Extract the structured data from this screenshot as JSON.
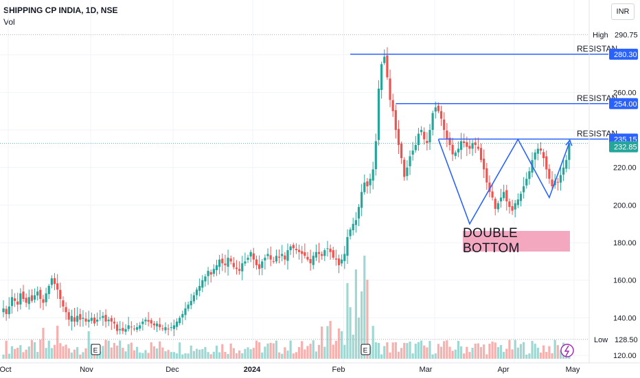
{
  "header": {
    "symbol": "SHIPPING CP INDIA, 1D, NSE",
    "indicator": "Vol",
    "currency": "INR"
  },
  "annotation": {
    "pattern_label": "DOUBLE BOTTOM",
    "resistance_label": "RESISTAN"
  },
  "badges": {
    "high_label": "High",
    "high_value": "290.75",
    "low_label": "Low",
    "low_value": "128.50",
    "earnings_label": "E"
  },
  "chart_data": {
    "type": "candlestick",
    "x_axis": {
      "tick_labels": [
        "Oct",
        "Nov",
        "Dec",
        "2024",
        "Feb",
        "Mar",
        "Apr",
        "May"
      ]
    },
    "y_axis": {
      "tick_values": [
        120,
        140,
        160,
        180,
        200,
        220,
        240,
        260,
        280
      ],
      "tick_labels": [
        "120.00",
        "140.00",
        "160.00",
        "180.00",
        "200.00",
        "220.00",
        "240.00",
        "260.00",
        "280.00"
      ],
      "range": [
        116,
        296
      ]
    },
    "high": 290.75,
    "low": 128.5,
    "last_price": 232.85,
    "resistance_levels": [
      {
        "label": "RESISTAN",
        "value": 280.3,
        "value_label": "280.30"
      },
      {
        "label": "RESISTAN",
        "value": 254.0,
        "value_label": "254.00"
      },
      {
        "label": "RESISTAN",
        "value": 235.15,
        "value_label": "235.15"
      }
    ],
    "colors": {
      "up": "#26a69a",
      "down": "#ef5350",
      "up_volume": "#9fd8d2",
      "down_volume": "#f6b0ae",
      "resistance": "#2962ff",
      "pattern_line": "#2962ff",
      "last_price_badge": "#26a69a",
      "pattern_label_bg": "#f3a8c0"
    },
    "closes": [
      145,
      142,
      146,
      151,
      149,
      147,
      153,
      150,
      148,
      151,
      149,
      152,
      154,
      150,
      148,
      153,
      157,
      161,
      158,
      155,
      150,
      146,
      143,
      139,
      141,
      138,
      141,
      139,
      140,
      138,
      139,
      140,
      137,
      139,
      140,
      141,
      138,
      139,
      138,
      137,
      133,
      134,
      133,
      134,
      136,
      135,
      134,
      135,
      136,
      138,
      139,
      138,
      137,
      136,
      137,
      135,
      134,
      135,
      134,
      135,
      136,
      138,
      140,
      142,
      145,
      147,
      149,
      152,
      155,
      157,
      160,
      162,
      165,
      163,
      166,
      168,
      171,
      169,
      168,
      172,
      170,
      167,
      166,
      165,
      169,
      170,
      172,
      175,
      171,
      168,
      166,
      170,
      172,
      174,
      171,
      170,
      173,
      172,
      174,
      171,
      176,
      178,
      177,
      176,
      175,
      174,
      173,
      171,
      169,
      173,
      175,
      174,
      173,
      176,
      177,
      175,
      172,
      171,
      168,
      171,
      174,
      183,
      187,
      190,
      192,
      199,
      207,
      212,
      210,
      214,
      219,
      234,
      262,
      275,
      279,
      268,
      256,
      250,
      240,
      232,
      225,
      215,
      220,
      226,
      229,
      232,
      238,
      240,
      235,
      233,
      240,
      249,
      252,
      250,
      246,
      240,
      235,
      232,
      227,
      228,
      230,
      234,
      233,
      231,
      230,
      233,
      232,
      230,
      224,
      219,
      212,
      207,
      204,
      198,
      201,
      204,
      207,
      202,
      199,
      197,
      201,
      203,
      206,
      210,
      214,
      218,
      224,
      228,
      230,
      229,
      225,
      219,
      214,
      210,
      213,
      212,
      216,
      220,
      224,
      233
    ]
  }
}
